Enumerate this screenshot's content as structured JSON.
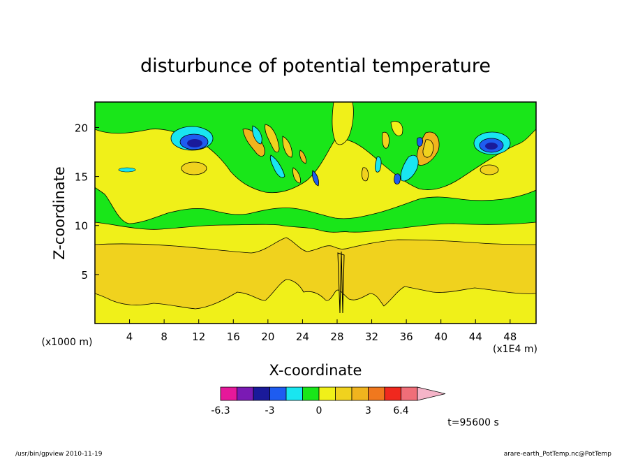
{
  "chart_data": {
    "type": "heatmap",
    "title": "disturbunce of potential temperature",
    "xlabel": "X-coordinate",
    "ylabel": "Z-coordinate",
    "x_unit_label": "(x1E4 m)",
    "y_unit_label": "(x1000 m)",
    "x_ticks": [
      "4",
      "8",
      "12",
      "16",
      "20",
      "24",
      "28",
      "32",
      "36",
      "40",
      "44",
      "48"
    ],
    "y_ticks": [
      "5",
      "10",
      "15",
      "20"
    ],
    "xlim": [
      0,
      51
    ],
    "ylim": [
      0,
      22.6
    ],
    "colorbar": {
      "labels": [
        "-6.3",
        "-3",
        "0",
        "3",
        "6.4"
      ],
      "colors": [
        "#e6189a",
        "#7a1ab4",
        "#1a1a9a",
        "#1e5cf0",
        "#19e6f0",
        "#19e619",
        "#f0f019",
        "#f0d21e",
        "#f0b41e",
        "#f0781e",
        "#f0281e",
        "#f06e78",
        "#f5b4c8"
      ]
    },
    "background_color": "#19e619",
    "time_label": "t=95600 s"
  },
  "footer": {
    "left": "/usr/bin/gpview   2010-11-19",
    "right": "arare-earth_PotTemp.nc@PotTemp"
  }
}
